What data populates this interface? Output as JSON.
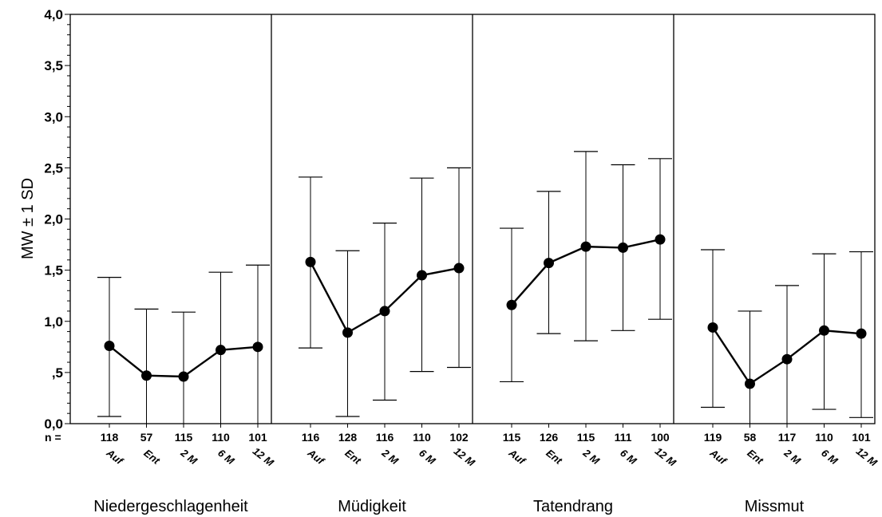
{
  "chart_data": {
    "type": "line",
    "ylabel": "MW ± 1 SD",
    "ylim": [
      0,
      4
    ],
    "yticks": [
      "0,0",
      ",5",
      "1,0",
      "1,5",
      "2,0",
      "2,5",
      "3,0",
      "3,5",
      "4,0"
    ],
    "yticks_values": [
      0,
      0.5,
      1,
      1.5,
      2,
      2.5,
      3,
      3.5,
      4
    ],
    "n_prefix": "n =",
    "categories": [
      "Auf",
      "Ent",
      "2 M",
      "6 M",
      "12 M"
    ],
    "panels": [
      {
        "name": "Niedergeschlagenheit",
        "n": [
          "118",
          "57",
          "115",
          "110",
          "101"
        ],
        "means": [
          0.76,
          0.47,
          0.46,
          0.72,
          0.75
        ],
        "upper": [
          1.43,
          1.12,
          1.09,
          1.48,
          1.55
        ],
        "lower": [
          0.07,
          0.0,
          0.0,
          0.0,
          0.0
        ]
      },
      {
        "name": "Müdigkeit",
        "n": [
          "116",
          "128",
          "116",
          "110",
          "102"
        ],
        "means": [
          1.58,
          0.89,
          1.1,
          1.45,
          1.52
        ],
        "upper": [
          2.41,
          1.69,
          1.96,
          2.4,
          2.5
        ],
        "lower": [
          0.74,
          0.07,
          0.23,
          0.51,
          0.55
        ]
      },
      {
        "name": "Tatendrang",
        "n": [
          "115",
          "126",
          "115",
          "111",
          "100"
        ],
        "means": [
          1.16,
          1.57,
          1.73,
          1.72,
          1.8
        ],
        "upper": [
          1.91,
          2.27,
          2.66,
          2.53,
          2.59
        ],
        "lower": [
          0.41,
          0.88,
          0.81,
          0.91,
          1.02
        ]
      },
      {
        "name": "Missmut",
        "n": [
          "119",
          "58",
          "117",
          "110",
          "101"
        ],
        "means": [
          0.94,
          0.39,
          0.63,
          0.91,
          0.88
        ],
        "upper": [
          1.7,
          1.1,
          1.35,
          1.66,
          1.68
        ],
        "lower": [
          0.16,
          0.0,
          0.0,
          0.14,
          0.06
        ]
      }
    ]
  }
}
